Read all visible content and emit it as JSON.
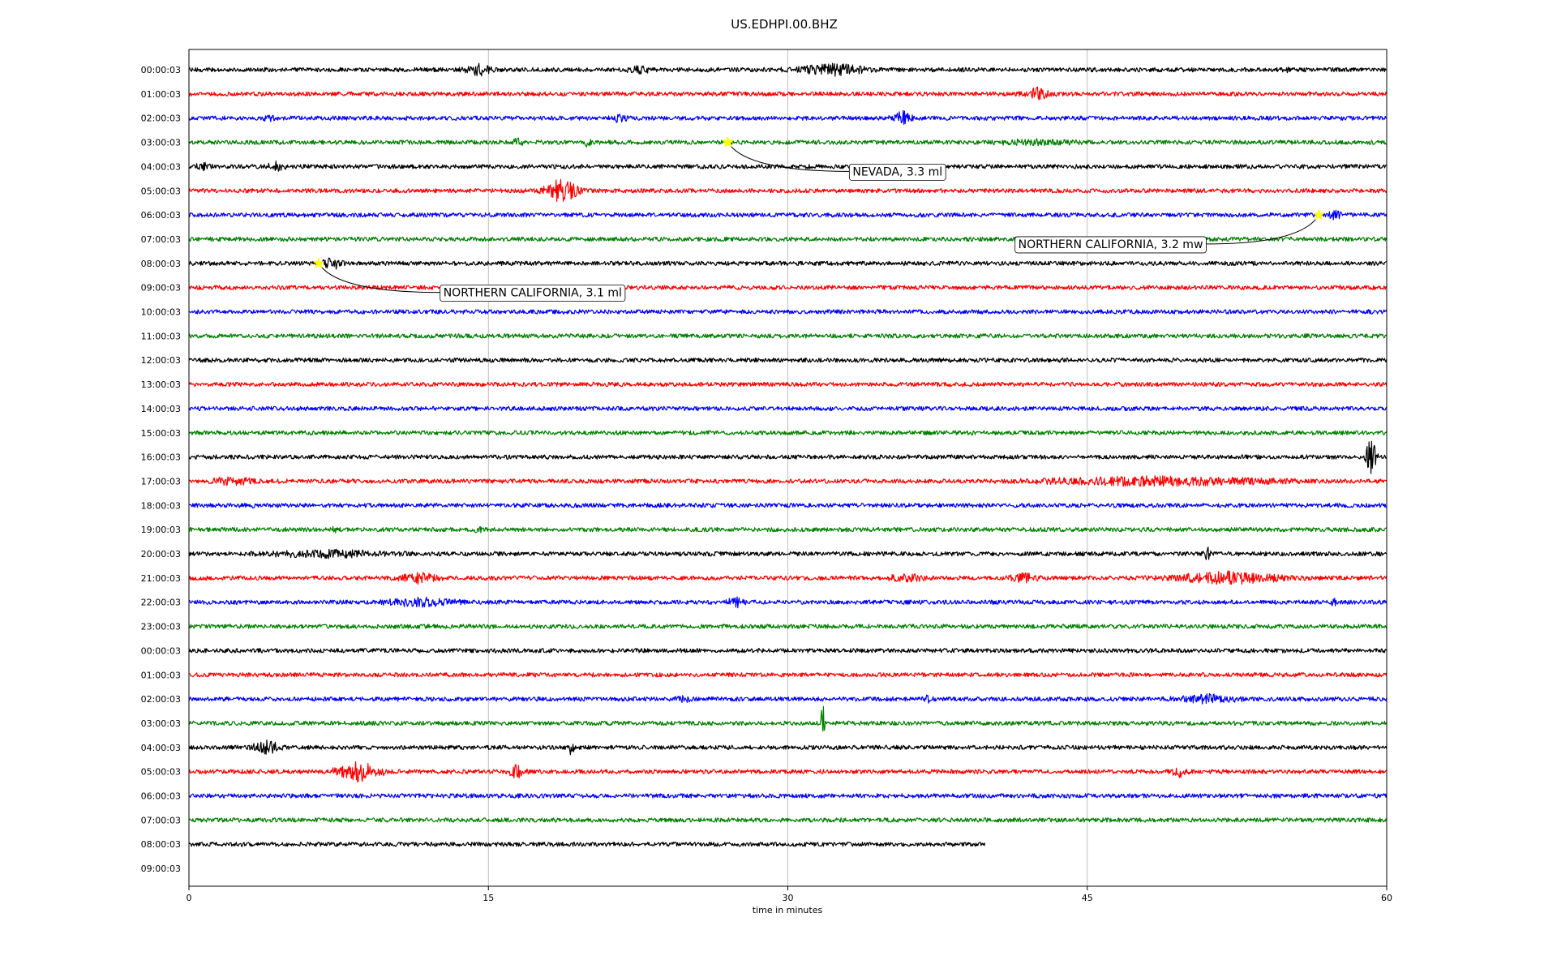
{
  "chart_data": {
    "type": "line",
    "title": "US.EDHPI.00.BHZ",
    "xlabel": "time in minutes",
    "ylabel": "",
    "xlim": [
      0,
      60
    ],
    "x_ticks": [
      "0",
      "15",
      "30",
      "45",
      "60"
    ],
    "grid": "vertical",
    "trace_colors": [
      "#000000",
      "#ff0000",
      "#0000ff",
      "#008000"
    ],
    "row_labels": [
      "00:00:03",
      "01:00:03",
      "02:00:03",
      "03:00:03",
      "04:00:03",
      "05:00:03",
      "06:00:03",
      "07:00:03",
      "08:00:03",
      "09:00:03",
      "10:00:03",
      "11:00:03",
      "12:00:03",
      "13:00:03",
      "14:00:03",
      "15:00:03",
      "16:00:03",
      "17:00:03",
      "18:00:03",
      "19:00:03",
      "20:00:03",
      "21:00:03",
      "22:00:03",
      "23:00:03",
      "00:00:03",
      "01:00:03",
      "02:00:03",
      "03:00:03",
      "04:00:03",
      "05:00:03",
      "06:00:03",
      "07:00:03",
      "08:00:03",
      "09:00:03"
    ],
    "trace_end_minutes": [
      60,
      60,
      60,
      60,
      60,
      60,
      60,
      60,
      60,
      60,
      60,
      60,
      60,
      60,
      60,
      60,
      60,
      60,
      60,
      60,
      60,
      60,
      60,
      60,
      60,
      60,
      60,
      60,
      60,
      60,
      60,
      60,
      39.9
    ],
    "wave_bursts": [
      {
        "row": 0,
        "start": 13.5,
        "end": 15.5,
        "amp": 9
      },
      {
        "row": 0,
        "start": 21.5,
        "end": 23.5,
        "amp": 7
      },
      {
        "row": 0,
        "start": 29.5,
        "end": 35,
        "amp": 9
      },
      {
        "row": 0,
        "start": 54.5,
        "end": 55.5,
        "amp": 5
      },
      {
        "row": 1,
        "start": 41.5,
        "end": 43.5,
        "amp": 9
      },
      {
        "row": 2,
        "start": 3.5,
        "end": 4.5,
        "amp": 6
      },
      {
        "row": 2,
        "start": 20.5,
        "end": 22.5,
        "amp": 6
      },
      {
        "row": 2,
        "start": 35,
        "end": 36.5,
        "amp": 10
      },
      {
        "row": 3,
        "start": 16,
        "end": 17,
        "amp": 7
      },
      {
        "row": 3,
        "start": 19.8,
        "end": 20.2,
        "amp": 10
      },
      {
        "row": 3,
        "start": 37.5,
        "end": 47,
        "amp": 5
      },
      {
        "row": 3,
        "start": 55,
        "end": 56,
        "amp": 4
      },
      {
        "row": 4,
        "start": 0,
        "end": 1.5,
        "amp": 7
      },
      {
        "row": 4,
        "start": 3.5,
        "end": 5.2,
        "amp": 7
      },
      {
        "row": 5,
        "start": 17.5,
        "end": 19.8,
        "amp": 17
      },
      {
        "row": 6,
        "start": 56.8,
        "end": 58,
        "amp": 7
      },
      {
        "row": 7,
        "start": 38.5,
        "end": 40,
        "amp": 3
      },
      {
        "row": 8,
        "start": 6.5,
        "end": 7.8,
        "amp": 11
      },
      {
        "row": 16,
        "start": 58.8,
        "end": 59.6,
        "amp": 24
      },
      {
        "row": 17,
        "start": 0.3,
        "end": 4,
        "amp": 7
      },
      {
        "row": 17,
        "start": 37,
        "end": 60,
        "amp": 7
      },
      {
        "row": 18,
        "start": 3,
        "end": 3.5,
        "amp": 5
      },
      {
        "row": 19,
        "start": 7,
        "end": 7.6,
        "amp": 5
      },
      {
        "row": 19,
        "start": 14,
        "end": 15,
        "amp": 5
      },
      {
        "row": 20,
        "start": 0,
        "end": 14,
        "amp": 6
      },
      {
        "row": 20,
        "start": 50.7,
        "end": 51.3,
        "amp": 10
      },
      {
        "row": 21,
        "start": 10,
        "end": 12.8,
        "amp": 10
      },
      {
        "row": 21,
        "start": 34.3,
        "end": 37.5,
        "amp": 7
      },
      {
        "row": 21,
        "start": 40.5,
        "end": 43.2,
        "amp": 7
      },
      {
        "row": 21,
        "start": 47.5,
        "end": 56.7,
        "amp": 9
      },
      {
        "row": 22,
        "start": 8.2,
        "end": 15,
        "amp": 7
      },
      {
        "row": 22,
        "start": 26.8,
        "end": 28,
        "amp": 9
      },
      {
        "row": 22,
        "start": 57,
        "end": 57.7,
        "amp": 6
      },
      {
        "row": 26,
        "start": 24,
        "end": 25.5,
        "amp": 6
      },
      {
        "row": 26,
        "start": 36.5,
        "end": 37.5,
        "amp": 6
      },
      {
        "row": 26,
        "start": 48,
        "end": 54,
        "amp": 7
      },
      {
        "row": 27,
        "start": 31.6,
        "end": 31.9,
        "amp": 26
      },
      {
        "row": 28,
        "start": 2.8,
        "end": 5,
        "amp": 10
      },
      {
        "row": 28,
        "start": 19,
        "end": 19.3,
        "amp": 16
      },
      {
        "row": 29,
        "start": 7.2,
        "end": 9.8,
        "amp": 15
      },
      {
        "row": 29,
        "start": 15.8,
        "end": 17,
        "amp": 10
      },
      {
        "row": 29,
        "start": 49,
        "end": 50.2,
        "amp": 9
      }
    ],
    "events": [
      {
        "label": "NEVADA, 3.3 ml",
        "row": 3,
        "minute": 27.0,
        "label_row": 4.2,
        "label_minute": 33.0
      },
      {
        "label": "NORTHERN CALIFORNIA, 3.2 mw",
        "row": 6,
        "minute": 56.6,
        "label_row": 7.2,
        "label_minute": 41.3
      },
      {
        "label": "NORTHERN CALIFORNIA, 3.1 ml",
        "row": 8,
        "minute": 6.5,
        "label_row": 9.2,
        "label_minute": 12.5
      }
    ],
    "event_marker_color": "#ffff00"
  }
}
